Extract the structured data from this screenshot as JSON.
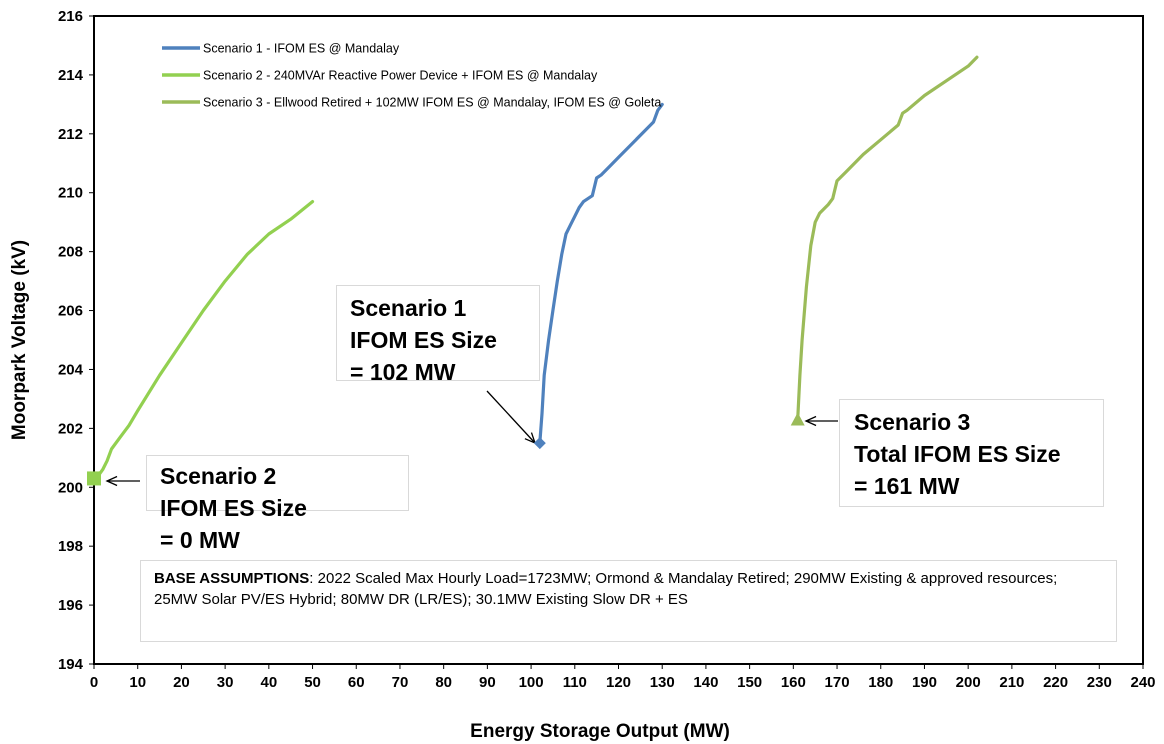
{
  "chart_data": {
    "type": "line",
    "title": "",
    "xlabel": "Energy Storage Output (MW)",
    "ylabel": "Moorpark Voltage (kV)",
    "xlim": [
      0,
      240
    ],
    "ylim": [
      194,
      216
    ],
    "xticks": [
      0,
      10,
      20,
      30,
      40,
      50,
      60,
      70,
      80,
      90,
      100,
      110,
      120,
      130,
      140,
      150,
      160,
      170,
      180,
      190,
      200,
      210,
      220,
      230,
      240
    ],
    "yticks": [
      194,
      196,
      198,
      200,
      202,
      204,
      206,
      208,
      210,
      212,
      214,
      216
    ],
    "grid": false,
    "legend_position": "top-left",
    "series": [
      {
        "name": "Scenario 1  - IFOM ES @ Mandalay",
        "color": "#4f81bd",
        "marker": "diamond",
        "marker_at": [
          102,
          201.5
        ],
        "points": [
          [
            102,
            201.5
          ],
          [
            102.5,
            202.5
          ],
          [
            103,
            203.8
          ],
          [
            104,
            205
          ],
          [
            105,
            206
          ],
          [
            106,
            207
          ],
          [
            107,
            207.9
          ],
          [
            108,
            208.6
          ],
          [
            109,
            208.9
          ],
          [
            110,
            209.2
          ],
          [
            111,
            209.5
          ],
          [
            112,
            209.7
          ],
          [
            114,
            209.9
          ],
          [
            115,
            210.5
          ],
          [
            116,
            210.6
          ],
          [
            118,
            210.9
          ],
          [
            120,
            211.2
          ],
          [
            124,
            211.8
          ],
          [
            128,
            212.4
          ],
          [
            129,
            212.8
          ],
          [
            130,
            213
          ]
        ]
      },
      {
        "name": "Scenario 2 - 240MVAr Reactive Power Device + IFOM ES @ Mandalay",
        "color": "#92d050",
        "marker": "square",
        "marker_at": [
          0,
          200.3
        ],
        "points": [
          [
            0,
            200.3
          ],
          [
            1,
            200.4
          ],
          [
            2,
            200.6
          ],
          [
            3,
            200.9
          ],
          [
            4,
            201.3
          ],
          [
            6,
            201.7
          ],
          [
            8,
            202.1
          ],
          [
            10,
            202.6
          ],
          [
            15,
            203.8
          ],
          [
            20,
            204.9
          ],
          [
            25,
            206
          ],
          [
            30,
            207
          ],
          [
            35,
            207.9
          ],
          [
            40,
            208.6
          ],
          [
            45,
            209.1
          ],
          [
            50,
            209.7
          ]
        ]
      },
      {
        "name": "Scenario 3 - Ellwood Retired + 102MW IFOM ES @ Mandalay,  IFOM ES @ Goleta",
        "color": "#9bbb59",
        "marker": "triangle",
        "marker_at": [
          161,
          202.3
        ],
        "points": [
          [
            161,
            202.3
          ],
          [
            161.5,
            203.8
          ],
          [
            162,
            205
          ],
          [
            163,
            206.8
          ],
          [
            164,
            208.2
          ],
          [
            165,
            209
          ],
          [
            166,
            209.3
          ],
          [
            168,
            209.6
          ],
          [
            169,
            209.8
          ],
          [
            170,
            210.4
          ],
          [
            172,
            210.7
          ],
          [
            176,
            211.3
          ],
          [
            180,
            211.8
          ],
          [
            184,
            212.3
          ],
          [
            185,
            212.7
          ],
          [
            186,
            212.8
          ],
          [
            190,
            213.3
          ],
          [
            195,
            213.8
          ],
          [
            200,
            214.3
          ],
          [
            202,
            214.6
          ]
        ]
      }
    ],
    "annotations": [
      {
        "name": "scenario-1",
        "lines": [
          "Scenario 1",
          "IFOM ES Size",
          "= 102 MW"
        ]
      },
      {
        "name": "scenario-2",
        "lines": [
          "Scenario 2",
          "IFOM ES Size",
          "= 0 MW"
        ]
      },
      {
        "name": "scenario-3",
        "lines": [
          "Scenario 3",
          "Total IFOM ES Size",
          "= 161 MW"
        ]
      }
    ],
    "note": {
      "label": "BASE ASSUMPTIONS",
      "text": ":  2022 Scaled Max Hourly Load=1723MW; Ormond & Mandalay Retired; 290MW Existing & approved resources; 25MW Solar PV/ES Hybrid;  80MW DR (LR/ES); 30.1MW Existing Slow DR + ES"
    }
  }
}
